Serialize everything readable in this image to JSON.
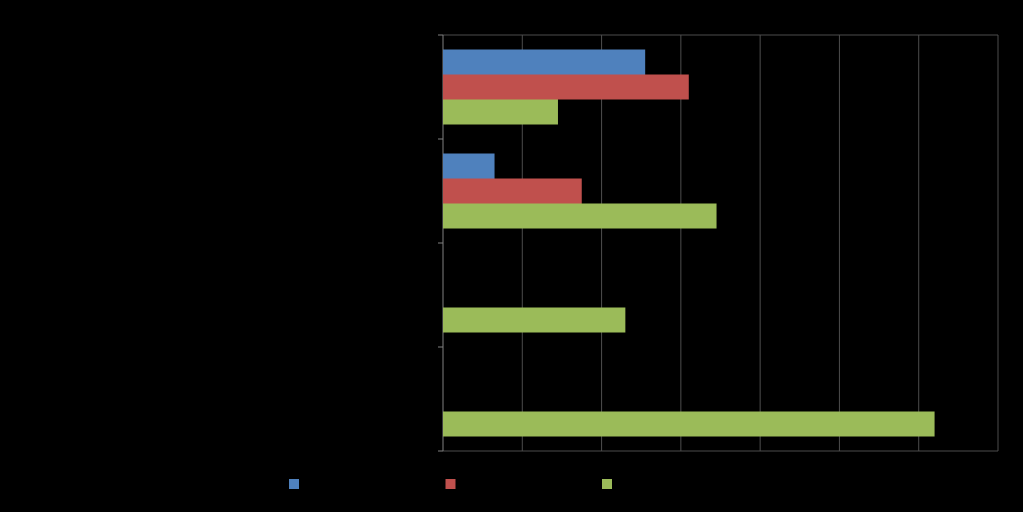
{
  "chart_data": {
    "type": "hbar",
    "categories": [
      null,
      null,
      null,
      null
    ],
    "series": [
      {
        "color": "#4f81bd",
        "values": [
          2.55,
          0.65,
          null,
          null
        ]
      },
      {
        "color": "#c0504d",
        "values": [
          3.1,
          1.75,
          null,
          null
        ]
      },
      {
        "color": "#9bbb59",
        "values": [
          1.45,
          3.45,
          2.3,
          6.2
        ]
      }
    ],
    "xlim": [
      0,
      7
    ],
    "xticks": [
      0,
      1,
      2,
      3,
      4,
      5,
      6,
      7
    ],
    "grid": true
  }
}
